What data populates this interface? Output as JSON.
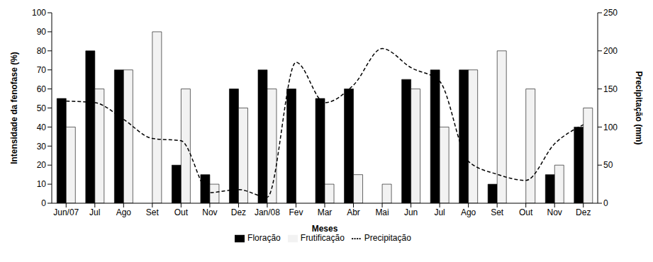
{
  "chart_data": {
    "type": "bar",
    "x_label": "Meses",
    "y_label": "Intensidade da fenofase (%)",
    "y2_label": "Precipitação (mm)",
    "categories": [
      "Jun/07",
      "Jul",
      "Ago",
      "Set",
      "Out",
      "Nov",
      "Dez",
      "Jan/08",
      "Fev",
      "Mar",
      "Abr",
      "Mai",
      "Jun",
      "Jul",
      "Ago",
      "Set",
      "Out",
      "Nov",
      "Dez"
    ],
    "series": [
      {
        "name": "Floração",
        "type": "bar",
        "color": "#000000",
        "values": [
          55,
          80,
          70,
          0,
          20,
          15,
          60,
          70,
          60,
          55,
          60,
          0,
          65,
          70,
          70,
          10,
          0,
          15,
          40
        ]
      },
      {
        "name": "Frutificação",
        "type": "bar",
        "color": "#f2f2f2",
        "values": [
          40,
          60,
          70,
          90,
          60,
          10,
          50,
          60,
          0,
          10,
          15,
          10,
          60,
          40,
          70,
          80,
          60,
          20,
          50
        ]
      },
      {
        "name": "Precipitação",
        "type": "line",
        "axis": "y2",
        "color": "#000000",
        "line_style": "dashed",
        "marker": "none",
        "values": [
          134,
          132,
          110,
          85,
          82,
          14,
          18,
          8,
          185,
          132,
          155,
          203,
          178,
          160,
          55,
          38,
          30,
          78,
          103
        ]
      }
    ],
    "ylim": [
      0,
      100
    ],
    "yticks": [
      0,
      10,
      20,
      30,
      40,
      50,
      60,
      70,
      80,
      90,
      100
    ],
    "y2lim": [
      0,
      250
    ],
    "y2ticks": [
      0,
      50,
      100,
      150,
      200,
      250
    ],
    "grid": false,
    "legend": "bottom"
  }
}
